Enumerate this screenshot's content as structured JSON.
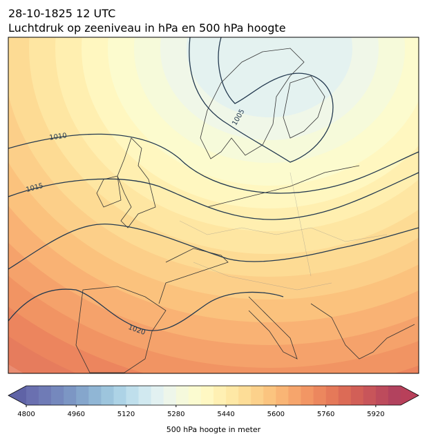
{
  "header": {
    "title": "28-10-1825 12 UTC",
    "subtitle": "Luchtdruk op zeeniveau in hPa en 500 hPa hoogte"
  },
  "map": {
    "isobar_labels": [
      "1005",
      "1010",
      "1015",
      "1020"
    ]
  },
  "colorbar": {
    "label": "500 hPa hoogte in meter",
    "lim": [
      4800,
      6000
    ],
    "ticks": [
      4800,
      4960,
      5120,
      5280,
      5440,
      5600,
      5760,
      5920
    ],
    "under_color": "#5f63a6",
    "over_color": "#b8405a",
    "colors": [
      "#6a70b0",
      "#6f7bb6",
      "#7588bd",
      "#7c96c4",
      "#85a6cc",
      "#90b6d5",
      "#9dc5dd",
      "#add3e6",
      "#bfdfec",
      "#d1e9f0",
      "#e2f1f1",
      "#eef6ea",
      "#f5f9dc",
      "#fbfbd0",
      "#fff8c3",
      "#fff0b3",
      "#fee8a5",
      "#fddd97",
      "#fcd18b",
      "#fbc47f",
      "#f9b575",
      "#f6a56c",
      "#f29664",
      "#ec875e",
      "#e57959",
      "#dc6b56",
      "#d25f57",
      "#c8555a",
      "#bd4b5c",
      "#b2425e"
    ]
  }
}
